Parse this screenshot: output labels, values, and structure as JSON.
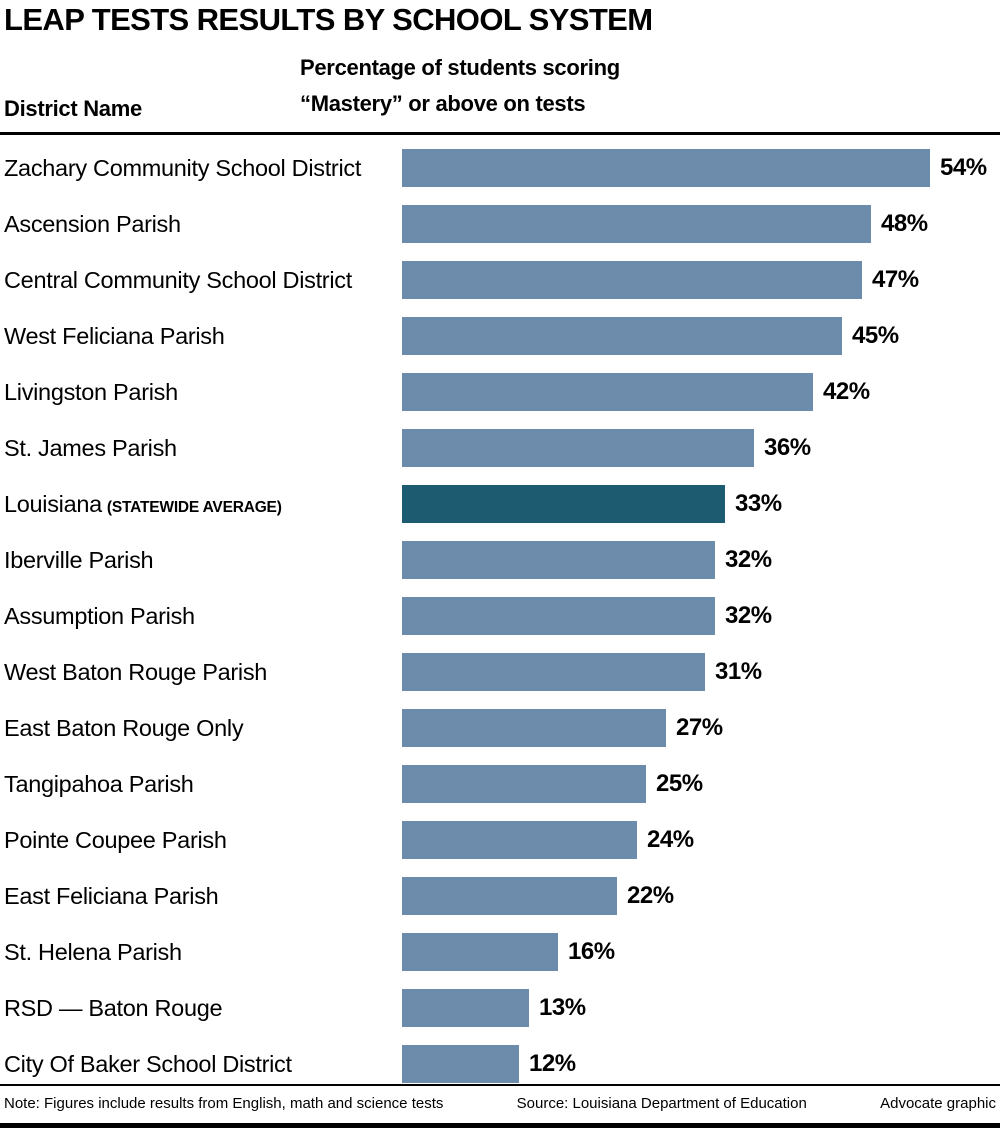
{
  "header": {
    "district_label": "District Name",
    "value_label_line1": "Percentage of students scoring",
    "value_label_line2": "“Mastery” or above on tests"
  },
  "chart_data": {
    "type": "bar",
    "orientation": "horizontal",
    "title": "LEAP TESTS RESULTS BY SCHOOL SYSTEM",
    "categories": [
      "Zachary Community School District",
      "Ascension Parish",
      "Central Community School District",
      "West Feliciana Parish",
      "Livingston Parish",
      "St. James Parish",
      "Louisiana (STATEWIDE AVERAGE)",
      "Iberville Parish",
      "Assumption Parish",
      "West Baton Rouge Parish",
      "East Baton Rouge Only",
      "Tangipahoa Parish",
      "Pointe Coupee Parish",
      "East Feliciana Parish",
      "St. Helena Parish",
      "RSD — Baton Rouge",
      "City Of Baker School District"
    ],
    "values": [
      54,
      48,
      47,
      45,
      42,
      36,
      33,
      32,
      32,
      31,
      27,
      25,
      24,
      22,
      16,
      13,
      12
    ],
    "value_suffix": "%",
    "xlim": [
      0,
      54
    ],
    "highlight_index": 6,
    "main_labels": {
      "6": "Louisiana"
    },
    "sublabels": {
      "6": "(STATEWIDE AVERAGE)"
    },
    "colors": {
      "bar": "#6d8cab",
      "highlight": "#1d5b70"
    },
    "grid": false,
    "legend": "none"
  },
  "footer": {
    "note": "Note: Figures include results from English, math and science tests",
    "source": "Source: Louisiana Department of Education",
    "credit": "Advocate graphic"
  }
}
